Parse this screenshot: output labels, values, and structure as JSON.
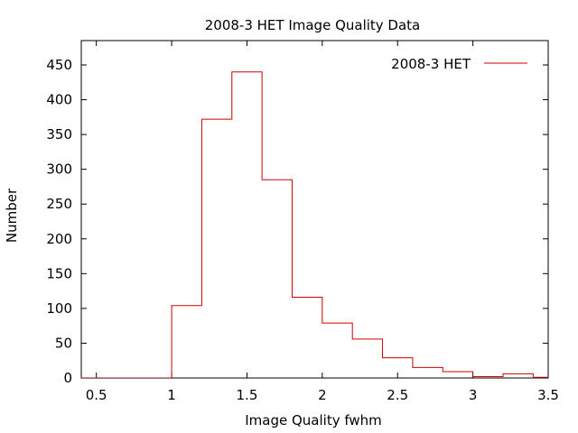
{
  "chart_data": {
    "type": "histogram",
    "title": "2008-3 HET Image Quality Data",
    "xlabel": "Image Quality fwhm",
    "ylabel": "Number",
    "xlim": [
      0.4,
      3.5
    ],
    "ylim": [
      0,
      485
    ],
    "xticks": [
      0.5,
      1,
      1.5,
      2,
      2.5,
      3,
      3.5
    ],
    "xtick_labels": [
      "0.5",
      "1",
      "1.5",
      "2",
      "2.5",
      "3",
      "3.5"
    ],
    "yticks": [
      0,
      50,
      100,
      150,
      200,
      250,
      300,
      350,
      400,
      450
    ],
    "ytick_labels": [
      "0",
      "50",
      "100",
      "150",
      "200",
      "250",
      "300",
      "350",
      "400",
      "450"
    ],
    "grid": false,
    "legend_position": "top-right",
    "series": [
      {
        "name": "2008-3 HET",
        "color": "#cc0000",
        "bin_edges": [
          1.0,
          1.2,
          1.4,
          1.6,
          1.8,
          2.0,
          2.2,
          2.4,
          2.6,
          2.8,
          3.0,
          3.2,
          3.4,
          3.6
        ],
        "values": [
          104,
          372,
          440,
          285,
          116,
          79,
          56,
          29,
          15,
          9,
          2,
          6,
          1
        ]
      }
    ]
  }
}
